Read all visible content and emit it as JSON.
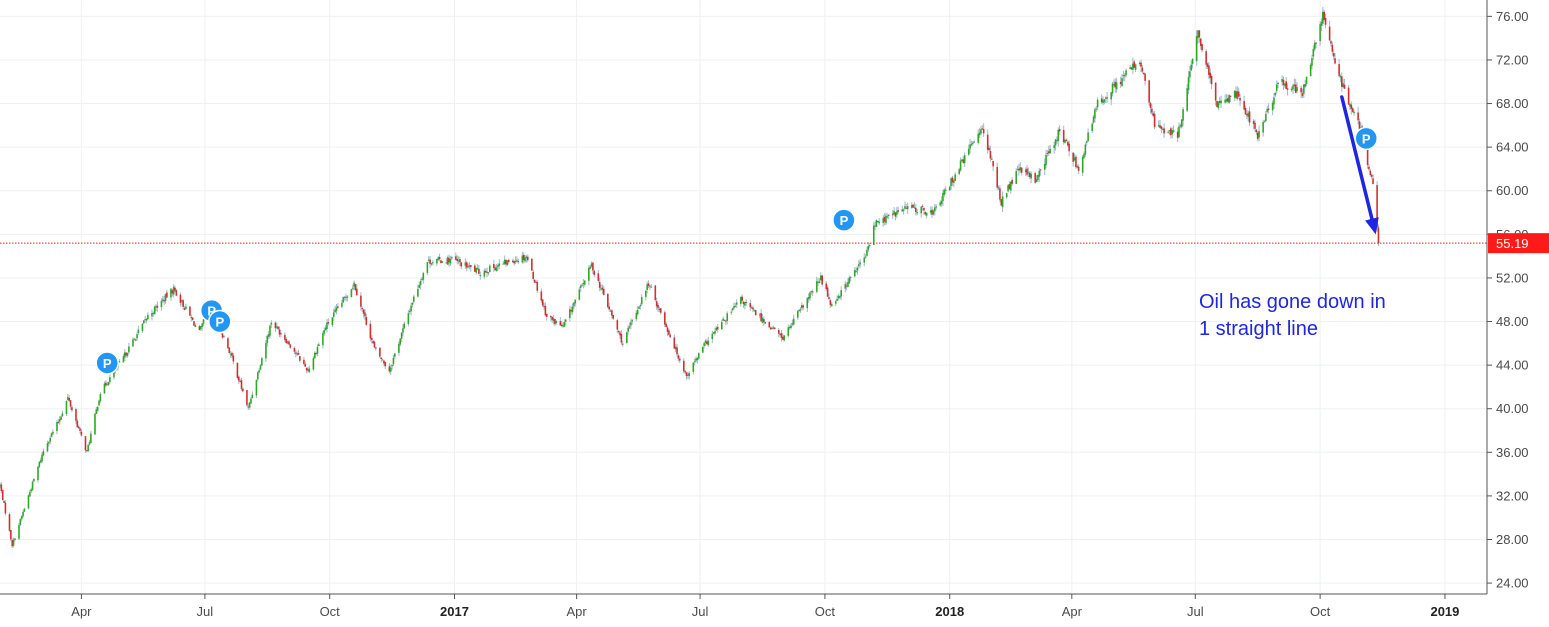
{
  "chart_data": {
    "type": "candlestick",
    "title": "",
    "xlabel": "",
    "ylabel": "",
    "ylim": [
      23.0,
      77.5
    ],
    "xlim": [
      "2016-02-01",
      "2019-02-01"
    ],
    "y_ticks": [
      "24.00",
      "28.00",
      "32.00",
      "36.00",
      "40.00",
      "44.00",
      "48.00",
      "52.00",
      "56.00",
      "60.00",
      "64.00",
      "68.00",
      "72.00",
      "76.00"
    ],
    "x_ticks": [
      {
        "label": "Apr",
        "date": "2016-04-01",
        "bold": false
      },
      {
        "label": "Jul",
        "date": "2016-07-01",
        "bold": false
      },
      {
        "label": "Oct",
        "date": "2016-10-01",
        "bold": false
      },
      {
        "label": "2017",
        "date": "2017-01-01",
        "bold": true
      },
      {
        "label": "Apr",
        "date": "2017-04-01",
        "bold": false
      },
      {
        "label": "Jul",
        "date": "2017-07-01",
        "bold": false
      },
      {
        "label": "Oct",
        "date": "2017-10-01",
        "bold": false
      },
      {
        "label": "2018",
        "date": "2018-01-01",
        "bold": true
      },
      {
        "label": "Apr",
        "date": "2018-04-01",
        "bold": false
      },
      {
        "label": "Jul",
        "date": "2018-07-01",
        "bold": false
      },
      {
        "label": "Oct",
        "date": "2018-10-01",
        "bold": false
      },
      {
        "label": "2019",
        "date": "2019-01-01",
        "bold": true
      }
    ],
    "grid": true,
    "price_path": [
      [
        "2016-02-01",
        33.0
      ],
      [
        "2016-02-10",
        27.5
      ],
      [
        "2016-02-22",
        32.0
      ],
      [
        "2016-03-05",
        36.5
      ],
      [
        "2016-03-15",
        38.8
      ],
      [
        "2016-03-22",
        41.0
      ],
      [
        "2016-04-05",
        36.0
      ],
      [
        "2016-04-15",
        41.5
      ],
      [
        "2016-05-01",
        44.5
      ],
      [
        "2016-05-20",
        48.5
      ],
      [
        "2016-06-08",
        51.0
      ],
      [
        "2016-06-27",
        47.0
      ],
      [
        "2016-07-05",
        49.5
      ],
      [
        "2016-07-20",
        45.0
      ],
      [
        "2016-08-02",
        40.0
      ],
      [
        "2016-08-19",
        48.0
      ],
      [
        "2016-09-01",
        46.0
      ],
      [
        "2016-09-15",
        43.5
      ],
      [
        "2016-09-28",
        47.5
      ],
      [
        "2016-10-19",
        51.5
      ],
      [
        "2016-11-03",
        45.5
      ],
      [
        "2016-11-14",
        43.5
      ],
      [
        "2016-11-30",
        49.5
      ],
      [
        "2016-12-12",
        53.5
      ],
      [
        "2016-12-30",
        53.7
      ],
      [
        "2017-01-20",
        52.5
      ],
      [
        "2017-02-10",
        53.5
      ],
      [
        "2017-02-23",
        54.0
      ],
      [
        "2017-03-10",
        48.5
      ],
      [
        "2017-03-22",
        47.5
      ],
      [
        "2017-04-12",
        53.2
      ],
      [
        "2017-05-05",
        46.0
      ],
      [
        "2017-05-24",
        51.5
      ],
      [
        "2017-06-21",
        43.0
      ],
      [
        "2017-07-05",
        46.0
      ],
      [
        "2017-07-31",
        50.0
      ],
      [
        "2017-08-31",
        46.5
      ],
      [
        "2017-09-28",
        52.0
      ],
      [
        "2017-10-06",
        49.5
      ],
      [
        "2017-10-31",
        54.0
      ],
      [
        "2017-11-07",
        57.0
      ],
      [
        "2017-12-01",
        58.5
      ],
      [
        "2017-12-20",
        58.0
      ],
      [
        "2018-01-05",
        61.5
      ],
      [
        "2018-01-25",
        66.0
      ],
      [
        "2018-02-08",
        59.0
      ],
      [
        "2018-02-21",
        62.0
      ],
      [
        "2018-03-05",
        61.0
      ],
      [
        "2018-03-23",
        65.5
      ],
      [
        "2018-04-06",
        62.0
      ],
      [
        "2018-04-20",
        68.0
      ],
      [
        "2018-05-21",
        72.0
      ],
      [
        "2018-06-01",
        66.0
      ],
      [
        "2018-06-18",
        65.0
      ],
      [
        "2018-07-03",
        74.5
      ],
      [
        "2018-07-16",
        68.0
      ],
      [
        "2018-08-01",
        69.0
      ],
      [
        "2018-08-16",
        65.0
      ],
      [
        "2018-09-01",
        70.0
      ],
      [
        "2018-09-18",
        69.0
      ],
      [
        "2018-10-03",
        76.0
      ],
      [
        "2018-10-19",
        69.0
      ],
      [
        "2018-10-31",
        65.5
      ],
      [
        "2018-11-09",
        60.5
      ],
      [
        "2018-11-13",
        55.19
      ]
    ],
    "last_price": 55.19,
    "last_price_label": "55.19",
    "series_colors": {
      "up": "#2fa826",
      "down": "#d0312d",
      "wick": "#9fb7c9"
    },
    "last_price_color": "#ff1a1a",
    "markers": [
      {
        "label": "P",
        "date": "2016-04-20",
        "price": 44.2
      },
      {
        "label": "P",
        "date": "2016-07-06",
        "price": 49.0
      },
      {
        "label": "P",
        "date": "2016-07-12",
        "price": 48.0
      },
      {
        "label": "P",
        "date": "2017-10-15",
        "price": 57.3
      },
      {
        "label": "P",
        "date": "2018-11-04",
        "price": 64.8
      }
    ],
    "marker_color": "#2196f3",
    "annotation": {
      "lines": [
        "Oil has gone down in",
        "1 straight line"
      ],
      "color": "#1f26e0",
      "arrow_from": [
        "2018-10-17",
        68.6
      ],
      "arrow_to": [
        "2018-11-11",
        56.0
      ]
    }
  }
}
